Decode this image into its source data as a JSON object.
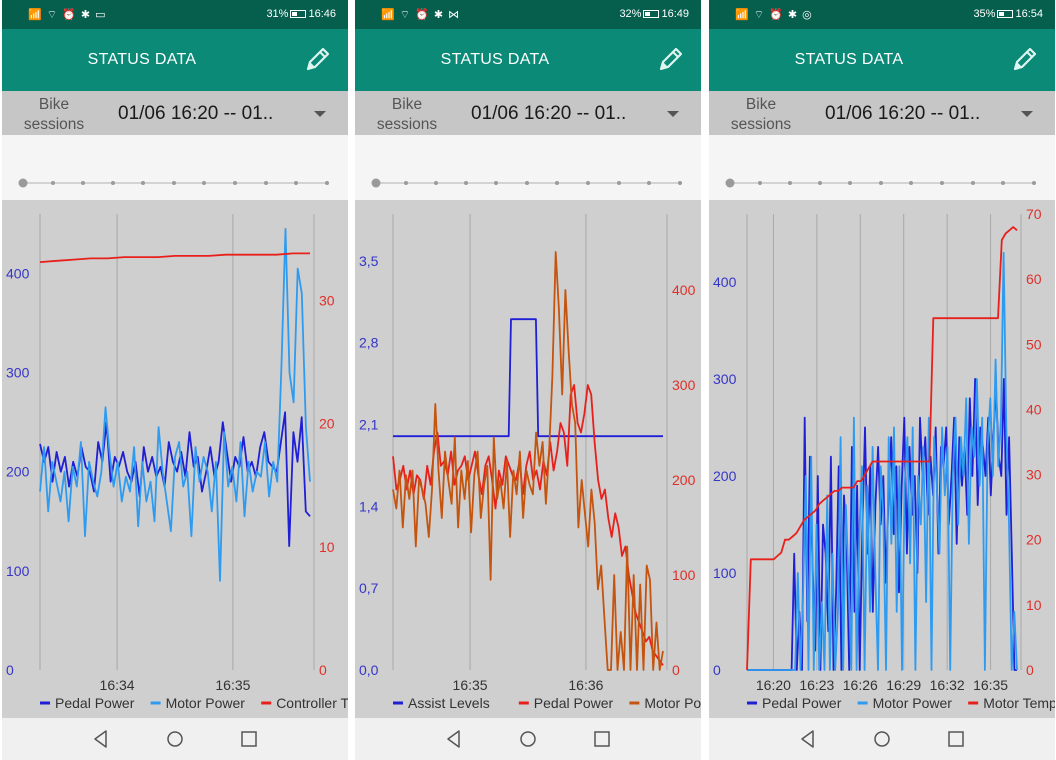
{
  "app_title": "STATUS DATA",
  "colors": {
    "status_bar": "#065e4d",
    "app_bar": "#0a8a77",
    "selector_bg": "#c6c6c6",
    "chart_bg": "#cfcfcf",
    "pedal_power": "#1f1fd6",
    "motor_power": "#2f9bf0",
    "controller_temp": "#e8201c",
    "assist_levels": "#1f1fd6",
    "pedal_power_red": "#e8201c",
    "motor_power_orange": "#c4540e",
    "motor_temp": "#e8201c"
  },
  "screens": [
    {
      "status": {
        "signal": "📶 ⌔ ⏰ ✱ ▭",
        "battery": "31%",
        "time": "16:46"
      },
      "selector": {
        "label": "Bike sessions",
        "value": "01/06 16:20 -- 01.."
      },
      "chart_data": {
        "type": "line",
        "x_ticks": [
          "16:34",
          "16:35"
        ],
        "y_left_ticks": [
          "0",
          "100",
          "200",
          "300",
          "400"
        ],
        "y_right_ticks": [
          "0",
          "10",
          "20",
          "30"
        ],
        "y_left_range": [
          0,
          460
        ],
        "y_right_range": [
          0,
          37
        ],
        "legend": "bottom",
        "series": [
          {
            "name": "Pedal Power",
            "axis": "left",
            "color": "#1f1fd6",
            "values": [
              228,
              210,
              225,
              190,
              220,
              200,
              215,
              185,
              210,
              195,
              225,
              205,
              200,
              180,
              230,
              210,
              250,
              190,
              215,
              205,
              220,
              200,
              190,
              210,
              175,
              225,
              200,
              215,
              195,
              205,
              185,
              230,
              210,
              200,
              220,
              195,
              240,
              205,
              215,
              180,
              200,
              225,
              195,
              210,
              250,
              220,
              190,
              215,
              205,
              235,
              200,
              210,
              195,
              225,
              240,
              210,
              205,
              200,
              230,
              260,
              125,
              240,
              210,
              255,
              160,
              155
            ]
          },
          {
            "name": "Motor Power",
            "axis": "left",
            "color": "#2f9bf0",
            "values": [
              180,
              225,
              160,
              210,
              190,
              170,
              200,
              150,
              205,
              185,
              230,
              135,
              210,
              190,
              175,
              200,
              265,
              220,
              185,
              210,
              170,
              195,
              180,
              225,
              145,
              210,
              170,
              190,
              150,
              245,
              200,
              170,
              140,
              215,
              230,
              185,
              200,
              135,
              225,
              190,
              215,
              200,
              160,
              210,
              90,
              240,
              185,
              205,
              170,
              230,
              155,
              210,
              180,
              200,
              195,
              230,
              175,
              210,
              190,
              305,
              445,
              300,
              270,
              405,
              380,
              245,
              190
            ]
          },
          {
            "name": "Controller Temp",
            "axis": "right",
            "color": "#e8201c",
            "values": [
              33.1,
              33.2,
              33.3,
              33.4,
              33.4,
              33.5,
              33.5,
              33.5,
              33.6,
              33.6,
              33.6,
              33.7,
              33.7,
              33.7,
              33.7,
              33.8,
              33.8
            ]
          }
        ]
      }
    },
    {
      "status": {
        "signal": "📶 ⌔ ⏰ ✱ ⋈",
        "battery": "32%",
        "time": "16:49"
      },
      "selector": {
        "label": "Bike sessions",
        "value": "01/06 16:20 -- 01.."
      },
      "chart_data": {
        "type": "line",
        "x_ticks": [
          "16:35",
          "16:36"
        ],
        "y_left_ticks": [
          "0,0",
          "0,7",
          "1,4",
          "2,1",
          "2,8",
          "3,5"
        ],
        "y_right_ticks": [
          "0",
          "100",
          "200",
          "300",
          "400"
        ],
        "y_left_range": [
          0,
          3.9
        ],
        "y_right_range": [
          0,
          480
        ],
        "legend": "bottom",
        "series": [
          {
            "name": "Assist Levels",
            "axis": "left",
            "color": "#1f1fd6",
            "values": [
              2.0,
              2.0,
              2.0,
              2.0,
              2.0,
              2.0,
              2.0,
              2.0,
              2.0,
              2.0,
              2.0,
              2.0,
              2.0,
              2.0,
              2.0,
              2.0,
              2.0,
              2.0,
              2.0,
              2.0,
              2.0,
              2.0,
              2.0,
              2.0,
              2.0,
              2.0,
              2.0,
              2.0,
              2.0,
              2.0,
              2.0,
              2.0,
              2.0,
              2.0,
              2.0,
              2.0,
              2.0,
              2.0,
              2.0,
              2.0,
              2.0,
              2.0,
              2.0,
              2.0,
              2.0,
              2.0,
              2.0,
              2.0,
              2.0,
              2.0,
              2.0,
              2.0,
              3.0,
              3.0,
              3.0,
              3.0,
              3.0,
              3.0,
              3.0,
              3.0,
              3.0,
              3.0,
              3.0,
              3.0,
              2.0,
              2.0,
              2.0,
              2.0,
              2.0,
              2.0,
              2.0,
              2.0,
              2.0,
              2.0,
              2.0,
              2.0,
              2.0,
              2.0,
              2.0,
              2.0,
              2.0,
              2.0,
              2.0,
              2.0,
              2.0,
              2.0,
              2.0,
              2.0,
              2.0,
              2.0,
              2.0,
              2.0,
              2.0,
              2.0,
              2.0,
              2.0,
              2.0,
              2.0,
              2.0,
              2.0,
              2.0,
              2.0,
              2.0,
              2.0,
              2.0,
              2.0,
              2.0,
              2.0,
              2.0,
              2.0,
              2.0,
              2.0,
              2.0,
              2.0,
              2.0,
              2.0,
              2.0,
              2.0,
              2.0,
              2.0
            ]
          },
          {
            "name": "Pedal Power",
            "axis": "right",
            "color": "#e8201c",
            "values": [
              225,
              190,
              200,
              215,
              190,
              210,
              185,
              205,
              200,
              180,
              215,
              195,
              230,
              250,
              215,
              220,
              205,
              230,
              195,
              210,
              215,
              225,
              200,
              215,
              230,
              205,
              185,
              215,
              225,
              200,
              170,
              210,
              195,
              225,
              215,
              205,
              200,
              220,
              185,
              215,
              230,
              200,
              210,
              190,
              220,
              205,
              240,
              210,
              230,
              260,
              250,
              215,
              290,
              300,
              260,
              250,
              270,
              300,
              290,
              240,
              200,
              180,
              190,
              160,
              140,
              165,
              150,
              120,
              130,
              100,
              80,
              60,
              50,
              40,
              30,
              35,
              20,
              15,
              10,
              5
            ]
          },
          {
            "name": "Motor Power",
            "axis": "right",
            "color": "#c4540e",
            "values": [
              190,
              170,
              210,
              150,
              205,
              180,
              210,
              130,
              200,
              190,
              175,
              140,
              190,
              280,
              210,
              160,
              230,
              200,
              175,
              245,
              150,
              210,
              180,
              220,
              145,
              205,
              230,
              160,
              195,
              215,
              95,
              245,
              180,
              200,
              170,
              220,
              140,
              210,
              185,
              230,
              160,
              210,
              195,
              185,
              250,
              215,
              240,
              175,
              230,
              310,
              440,
              380,
              290,
              400,
              335,
              280,
              260,
              150,
              200,
              165,
              130,
              190,
              155,
              85,
              110,
              55,
              0,
              0,
              100,
              0,
              40,
              0,
              130,
              0,
              100,
              0,
              90,
              0,
              110,
              95,
              0,
              50,
              0,
              20
            ]
          }
        ]
      }
    },
    {
      "status": {
        "signal": "📶 ⌔ ⏰ ✱ ◎",
        "battery": "35%",
        "time": "16:54"
      },
      "selector": {
        "label": "Bike sessions",
        "value": "01/06 16:20 -- 01.."
      },
      "chart_data": {
        "type": "line",
        "x_ticks": [
          "16:20",
          "16:23",
          "16:26",
          "16:29",
          "16:32",
          "16:35"
        ],
        "y_left_ticks": [
          "0",
          "100",
          "200",
          "300",
          "400"
        ],
        "y_right_ticks": [
          "0",
          "10",
          "20",
          "30",
          "40",
          "50",
          "60",
          "70"
        ],
        "y_left_range": [
          0,
          470
        ],
        "y_right_range": [
          0,
          70
        ],
        "legend": "bottom",
        "series": [
          {
            "name": "Pedal Power",
            "axis": "left",
            "color": "#1f1fd6",
            "values": [
              0,
              0,
              0,
              0,
              0,
              0,
              0,
              0,
              0,
              0,
              0,
              0,
              0,
              0,
              0,
              0,
              0,
              0,
              120,
              0,
              60,
              0,
              260,
              50,
              220,
              110,
              20,
              200,
              0,
              150,
              120,
              40,
              220,
              0,
              80,
              210,
              0,
              180,
              130,
              0,
              230,
              60,
              190,
              0,
              140,
              250,
              120,
              210,
              60,
              170,
              230,
              150,
              200,
              90,
              180,
              240,
              140,
              210,
              80,
              190,
              260,
              120,
              230,
              160,
              200,
              100,
              260,
              200,
              240,
              160,
              220,
              180,
              250,
              120,
              230,
              210,
              250,
              150,
              200,
              260,
              130,
              240,
              190,
              230,
              160,
              280,
              200,
              300,
              170,
              250,
              230,
              200,
              260,
              180,
              240,
              290,
              220,
              200,
              300,
              160,
              240,
              120,
              0,
              0
            ]
          },
          {
            "name": "Motor Power",
            "axis": "left",
            "color": "#2f9bf0",
            "values": [
              0,
              0,
              0,
              0,
              0,
              0,
              0,
              0,
              0,
              0,
              0,
              0,
              0,
              0,
              0,
              0,
              0,
              0,
              0,
              100,
              0,
              80,
              200,
              0,
              220,
              0,
              150,
              0,
              70,
              0,
              180,
              0,
              120,
              0,
              60,
              240,
              0,
              170,
              90,
              0,
              260,
              0,
              140,
              210,
              0,
              190,
              60,
              230,
              100,
              0,
              210,
              160,
              0,
              240,
              130,
              250,
              60,
              210,
              0,
              190,
              240,
              110,
              250,
              0,
              200,
              150,
              230,
              70,
              260,
              0,
              240,
              190,
              120,
              250,
              180,
              230,
              0,
              200,
              260,
              150,
              240,
              200,
              280,
              130,
              250,
              220,
              300,
              190,
              260,
              0,
              230,
              280,
              200,
              320,
              210,
              260,
              430,
              250,
              150,
              0,
              60,
              0
            ]
          },
          {
            "name": "Motor Temp",
            "axis": "right",
            "color": "#e8201c",
            "values": [
              0,
              17,
              17,
              17,
              17,
              17,
              17,
              17,
              17.5,
              18,
              20,
              20,
              20.5,
              21,
              22,
              23,
              23.5,
              24,
              24.5,
              25.5,
              26,
              26.5,
              27,
              27.5,
              27.5,
              28,
              28,
              28,
              28,
              29,
              29,
              30,
              31,
              32,
              32,
              32,
              32,
              32,
              32,
              32,
              32,
              32,
              32,
              32,
              32,
              32,
              32,
              32,
              32,
              54,
              54,
              54,
              54,
              54,
              54,
              54,
              54,
              54,
              54,
              54,
              54,
              54,
              54,
              54,
              54,
              54,
              54,
              66,
              67,
              67.5,
              68,
              67.5
            ]
          }
        ]
      }
    }
  ]
}
